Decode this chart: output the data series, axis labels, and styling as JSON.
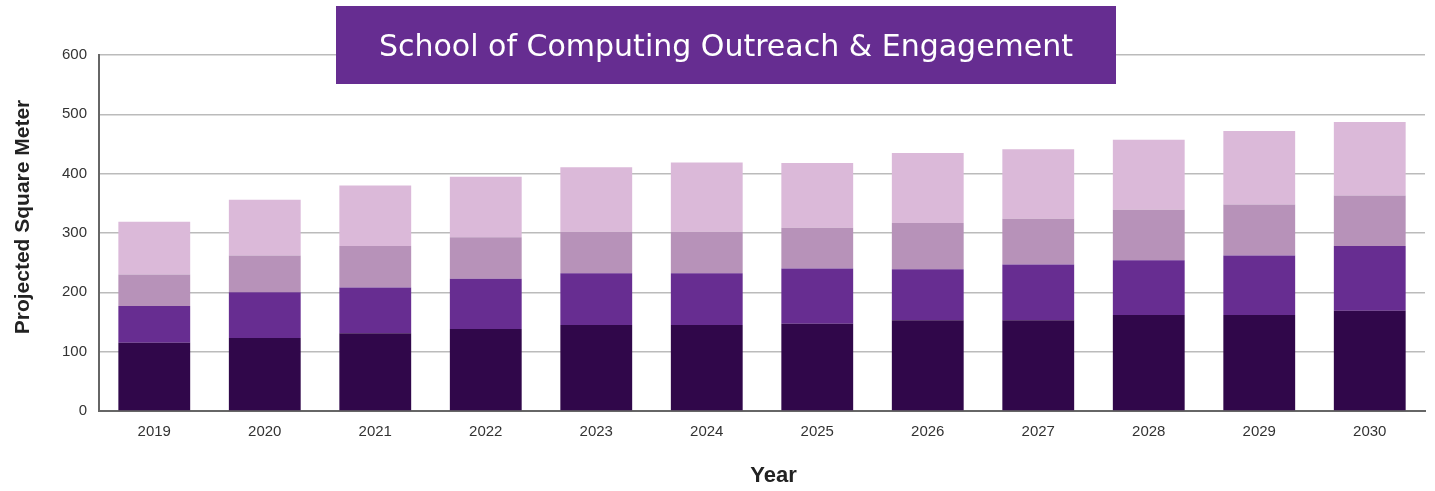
{
  "chart_data": {
    "type": "bar",
    "title": "School of Computing Outreach & Engagement",
    "xlabel": "Year",
    "ylabel": "Projected Square Meter",
    "categories": [
      "2019",
      "2020",
      "2021",
      "2022",
      "2023",
      "2024",
      "2025",
      "2026",
      "2027",
      "2028",
      "2029",
      "2030"
    ],
    "stacked": true,
    "series": [
      {
        "color": "#30074a",
        "values": [
          115,
          123,
          131,
          138,
          145,
          145,
          147,
          153,
          153,
          162,
          162,
          169
        ]
      },
      {
        "color": "#672d91",
        "values": [
          62,
          77,
          77,
          85,
          87,
          87,
          93,
          86,
          94,
          92,
          100,
          109
        ]
      },
      {
        "color": "#b792b9",
        "values": [
          53,
          62,
          70,
          70,
          70,
          70,
          69,
          78,
          77,
          85,
          86,
          85
        ]
      },
      {
        "color": "#dbb9d9",
        "values": [
          89,
          94,
          102,
          102,
          109,
          117,
          109,
          118,
          117,
          118,
          124,
          124
        ]
      }
    ],
    "ylim": [
      0,
      600
    ],
    "yticks": [
      0,
      100,
      200,
      300,
      400,
      500,
      600
    ],
    "grid": "y",
    "legend": false
  }
}
